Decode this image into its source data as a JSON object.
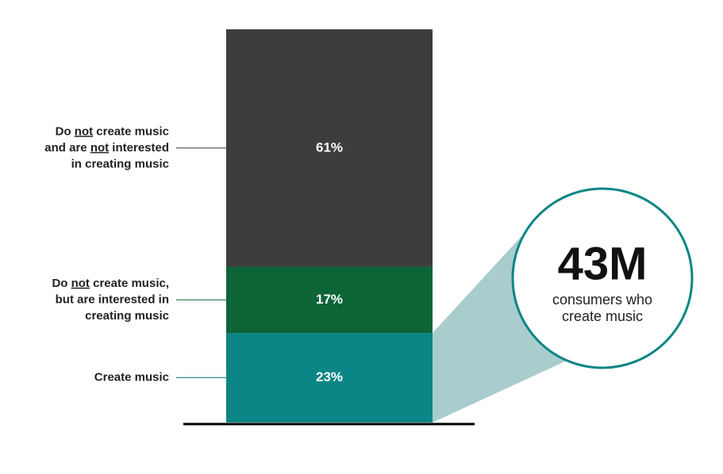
{
  "chart_data": {
    "type": "bar",
    "stacked": true,
    "categories": [
      [
        [
          "Create music"
        ]
      ],
      [
        [
          "Do ",
          {
            "text": "not",
            "underline": true
          },
          " create music,"
        ],
        [
          "but are interested in"
        ],
        [
          "creating music"
        ]
      ],
      [
        [
          "Do ",
          {
            "text": "not",
            "underline": true
          },
          " create music"
        ],
        [
          "and are ",
          {
            "text": "not",
            "underline": true
          },
          " interested"
        ],
        [
          "in creating music"
        ]
      ]
    ],
    "values": [
      23,
      17,
      61
    ],
    "value_labels": [
      "23%",
      "17%",
      "61%"
    ],
    "colors": [
      "#0b8585",
      "#0c6437",
      "#3d3d3d"
    ],
    "ylim": [
      0,
      101
    ],
    "callout": {
      "value": 43000000,
      "value_label": "43M",
      "lines": [
        "consumers who",
        "create music"
      ],
      "color": "#a9cccc",
      "border": "#0b8585"
    }
  }
}
